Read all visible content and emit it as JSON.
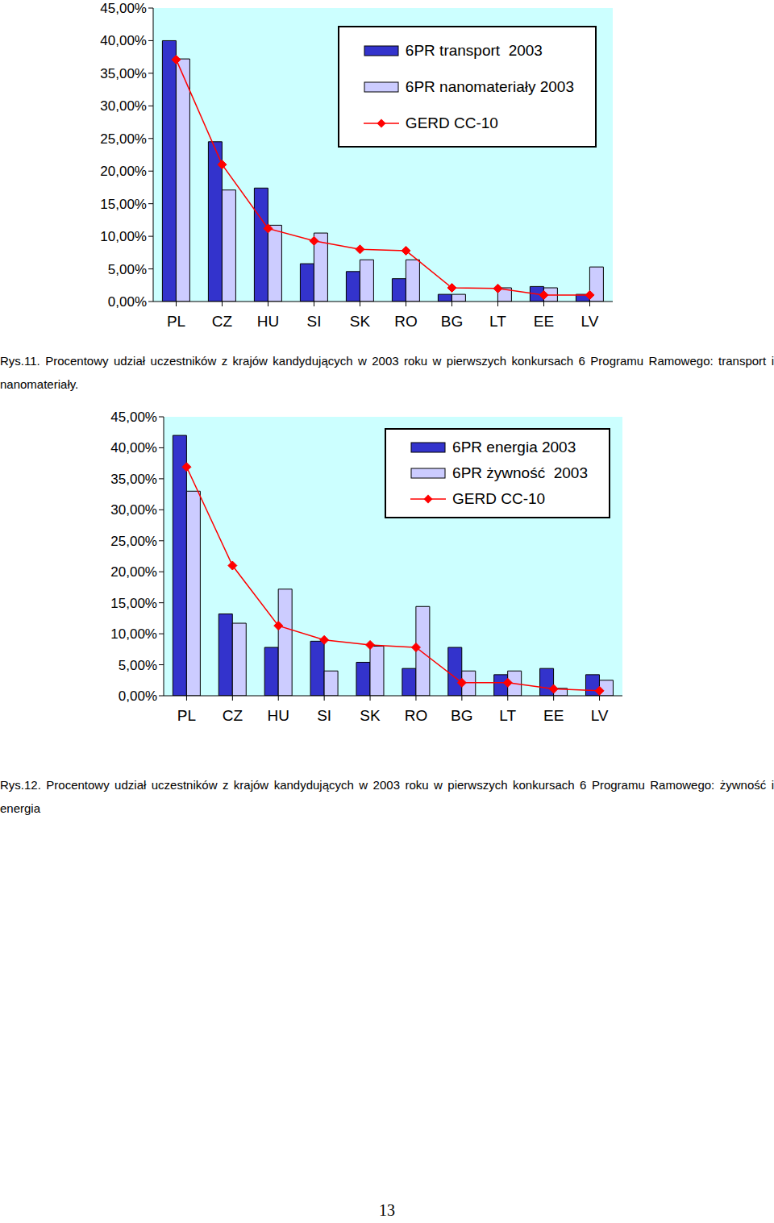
{
  "chart_data": [
    {
      "type": "bar",
      "title": "Rys.11. Procentowy udział uczestników z krajów kandydujących w 2003 roku w pierwszych konkursach 6 Programu Ramowego: transport i nanomateriały.",
      "categories": [
        "PL",
        "CZ",
        "HU",
        "SI",
        "SK",
        "RO",
        "BG",
        "LT",
        "EE",
        "LV"
      ],
      "series": [
        {
          "name": "6PR transport  2003",
          "type": "bar",
          "color": "#3333cc",
          "values": [
            40.0,
            24.5,
            17.4,
            5.8,
            4.6,
            3.5,
            1.1,
            0,
            2.3,
            1.1
          ]
        },
        {
          "name": "6PR nanomateriały 2003",
          "type": "bar",
          "color": "#ccccff",
          "values": [
            37.2,
            17.1,
            11.7,
            10.5,
            6.4,
            6.4,
            1.1,
            2.1,
            2.1,
            5.3
          ]
        },
        {
          "name": "GERD CC-10",
          "type": "line",
          "color": "#ff0000",
          "marker": "diamond",
          "values": [
            37.1,
            21.0,
            11.2,
            9.3,
            8.0,
            7.8,
            2.1,
            2.0,
            1.0,
            1.0
          ]
        }
      ],
      "ylim": [
        0,
        45
      ],
      "yticks": [
        {
          "value": 0,
          "label": "0,00%"
        },
        {
          "value": 5,
          "label": "5,00%"
        },
        {
          "value": 10,
          "label": "10,00%"
        },
        {
          "value": 15,
          "label": "15,00%"
        },
        {
          "value": 20,
          "label": "20,00%"
        },
        {
          "value": 25,
          "label": "25,00%"
        },
        {
          "value": 30,
          "label": "30,00%"
        },
        {
          "value": 35,
          "label": "35,00%"
        },
        {
          "value": 40,
          "label": "40,00%"
        },
        {
          "value": 45,
          "label": "45,00%"
        }
      ],
      "grid": false,
      "legend": "top-right"
    },
    {
      "type": "bar",
      "title": "Rys.12. Procentowy udział uczestników z krajów kandydujących w 2003 roku w pierwszych konkursach 6 Programu Ramowego: żywność i energia",
      "categories": [
        "PL",
        "CZ",
        "HU",
        "SI",
        "SK",
        "RO",
        "BG",
        "LT",
        "EE",
        "LV"
      ],
      "series": [
        {
          "name": "6PR energia 2003",
          "type": "bar",
          "color": "#3333cc",
          "values": [
            42.0,
            13.2,
            7.8,
            8.8,
            5.4,
            4.4,
            7.8,
            3.4,
            4.4,
            3.4
          ]
        },
        {
          "name": "6PR żywność  2003",
          "type": "bar",
          "color": "#ccccff",
          "values": [
            33.0,
            11.7,
            17.2,
            4.0,
            8.0,
            14.4,
            4.0,
            4.0,
            1.2,
            2.5
          ]
        },
        {
          "name": "GERD CC-10",
          "type": "line",
          "color": "#ff0000",
          "marker": "diamond",
          "values": [
            36.9,
            21.0,
            11.3,
            9.0,
            8.2,
            7.8,
            2.1,
            2.1,
            1.1,
            0.8
          ]
        }
      ],
      "ylim": [
        0,
        45
      ],
      "yticks": [
        {
          "value": 0,
          "label": "0,00%"
        },
        {
          "value": 5,
          "label": "5,00%"
        },
        {
          "value": 10,
          "label": "10,00%"
        },
        {
          "value": 15,
          "label": "15,00%"
        },
        {
          "value": 20,
          "label": "20,00%"
        },
        {
          "value": 25,
          "label": "25,00%"
        },
        {
          "value": 30,
          "label": "30,00%"
        },
        {
          "value": 35,
          "label": "35,00%"
        },
        {
          "value": 40,
          "label": "40,00%"
        },
        {
          "value": 45,
          "label": "45,00%"
        }
      ],
      "grid": false,
      "legend": "top-right"
    }
  ],
  "page_number": 13
}
